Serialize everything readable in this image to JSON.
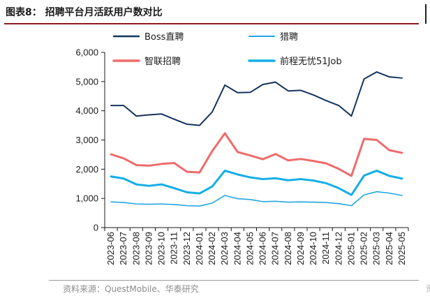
{
  "figure": {
    "title": "图表8：  招聘平台月活跃用户数对比",
    "source": "资料来源：QuestMobile、华泰研究",
    "edge_glyph": "资"
  },
  "colors": {
    "boss": "#14345e",
    "liepin": "#22a6e0",
    "zhilian": "#ef6b6b",
    "qiancheng": "#14aee6",
    "axis": "#1a1a1a",
    "title_rule": "#8a1c1c"
  },
  "chart_data": {
    "type": "line",
    "title": "招聘平台月活跃用户数对比",
    "xlabel": "",
    "ylabel": "",
    "ylim": [
      0,
      6000
    ],
    "yticks": [
      0,
      1000,
      2000,
      3000,
      4000,
      5000,
      6000
    ],
    "ytick_labels": [
      "0",
      "1,000",
      "2,000",
      "3,000",
      "4,000",
      "5,000",
      "6,000"
    ],
    "grid": false,
    "legend_placement": "top",
    "categories": [
      "2023-06",
      "2023-07",
      "2023-08",
      "2023-09",
      "2023-10",
      "2023-11",
      "2023-12",
      "2024-01",
      "2024-02",
      "2024-03",
      "2024-04",
      "2024-05",
      "2024-06",
      "2024-07",
      "2024-08",
      "2024-09",
      "2024-10",
      "2024-11",
      "2024-12",
      "2025-01",
      "2025-02",
      "2025-03",
      "2025-04",
      "2025-05"
    ],
    "series": [
      {
        "name": "Boss直聘",
        "color": "#14345e",
        "width": 2,
        "values": [
          4180,
          4180,
          3820,
          3860,
          3890,
          3710,
          3540,
          3500,
          3960,
          4880,
          4620,
          4630,
          4900,
          4980,
          4680,
          4700,
          4540,
          4350,
          4180,
          3820,
          5090,
          5330,
          5160,
          5120
        ]
      },
      {
        "name": "猎聘",
        "color": "#22a6e0",
        "width": 1.6,
        "values": [
          880,
          860,
          810,
          800,
          810,
          790,
          750,
          740,
          840,
          1100,
          990,
          960,
          890,
          900,
          870,
          880,
          870,
          860,
          820,
          750,
          1120,
          1230,
          1180,
          1100
        ]
      },
      {
        "name": "智联招聘",
        "color": "#ef6b6b",
        "width": 3,
        "values": [
          2510,
          2370,
          2140,
          2120,
          2180,
          2210,
          1910,
          1890,
          2620,
          3230,
          2590,
          2470,
          2340,
          2520,
          2300,
          2350,
          2280,
          2200,
          2010,
          1770,
          3040,
          3000,
          2650,
          2560
        ]
      },
      {
        "name": "前程无忧51Job",
        "color": "#14aee6",
        "width": 3,
        "values": [
          1750,
          1680,
          1480,
          1430,
          1480,
          1350,
          1210,
          1170,
          1410,
          1950,
          1820,
          1720,
          1660,
          1690,
          1620,
          1660,
          1610,
          1520,
          1350,
          1120,
          1780,
          1950,
          1770,
          1680
        ]
      }
    ]
  }
}
